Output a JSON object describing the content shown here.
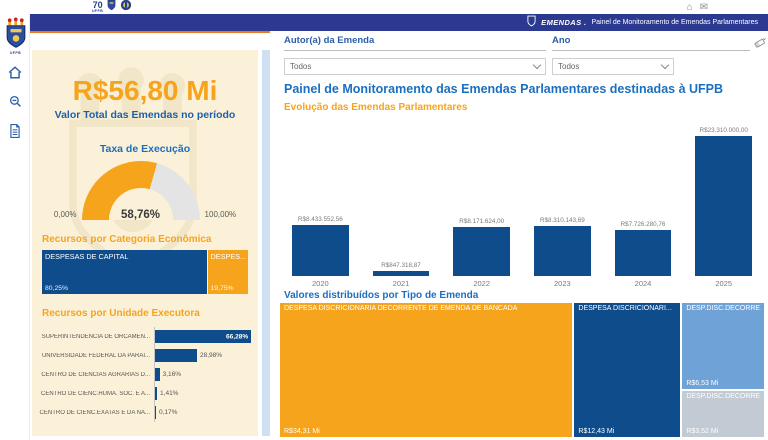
{
  "colors": {
    "navy": "#0F4C8C",
    "indigo": "#2B3990",
    "orange": "#F7A41D",
    "underline_orange": "#E87B1E",
    "cream": "#FBF1D8",
    "light_blue": "#6FA3D8",
    "gray_blue": "#C2CBD3",
    "gauge_rest": "#E4E4E4"
  },
  "topstrip": {
    "anniversary_number": "70",
    "anniversary_sub": "UFPB",
    "home_glyph": "⌂",
    "mail_glyph": "✉"
  },
  "appbar": {
    "brand": "EMENDAS .",
    "tagline": "Painel de Monitoramento de Emendas Parlamentares"
  },
  "sidebar": {
    "logo_text": "UFPB"
  },
  "filters": {
    "author_label": "Autor(a) da Emenda",
    "author_value": "Todos",
    "year_label": "Ano",
    "year_value": "Todos"
  },
  "kpi": {
    "total": "R$56,80 Mi",
    "caption": "Valor Total das Emendas no período"
  },
  "gauge": {
    "title": "Taxa de Execução",
    "value_label": "58,76%",
    "percent": 58.76,
    "min_label": "0,00%",
    "max_label": "100,00%"
  },
  "categoria": {
    "title": "Recursos por Categoria Econômica",
    "segments": [
      {
        "label": "DESPESAS DE CAPITAL",
        "pct_label": "80,25%",
        "pct": 80.25,
        "color": "#0F4C8C"
      },
      {
        "label": "DESPES...",
        "pct_label": "19,75%",
        "pct": 19.75,
        "color": "#F7A41D"
      }
    ]
  },
  "executora": {
    "title": "Recursos por Unidade Executora",
    "rows": [
      {
        "label": "SUPERINTENDENCIA DE ORCAMEN...",
        "pct_label": "66,28%",
        "pct": 66.28
      },
      {
        "label": "UNIVERSIDADE FEDERAL DA PARAI...",
        "pct_label": "28,98%",
        "pct": 28.98
      },
      {
        "label": "CENTRO DE CIENCIAS AGRARIAS D...",
        "pct_label": "3,16%",
        "pct": 3.16
      },
      {
        "label": "CENTRO DE CIENC.HUMA. SOC. E A...",
        "pct_label": "1,41%",
        "pct": 1.41
      },
      {
        "label": "CENTRO DE CIENC.EXATAS E DA NA...",
        "pct_label": "0,17%",
        "pct": 0.17
      }
    ]
  },
  "main": {
    "title": "Painel de Monitoramento das Emendas Parlamentares destinadas à UFPB",
    "evolution": {
      "title": "Evolução das Emendas Parlamentares",
      "max_value": 23310000,
      "items": [
        {
          "year": "2020",
          "label": "R$8.433.552,56",
          "value": 8433552.56
        },
        {
          "year": "2021",
          "label": "R$847.318,87",
          "value": 847318.87
        },
        {
          "year": "2022",
          "label": "R$8.171.624,00",
          "value": 8171624.0
        },
        {
          "year": "2023",
          "label": "R$8.310.143,69",
          "value": 8310143.69
        },
        {
          "year": "2024",
          "label": "R$7.726.280,76",
          "value": 7726280.76
        },
        {
          "year": "2025",
          "label": "R$23.310.000,00",
          "value": 23310000.0
        }
      ]
    },
    "treemap": {
      "title": "Valores distribuídos por Tipo de Emenda",
      "blocks": [
        {
          "label": "DESPESA DISCRICIONARIA DECORRENTE DE EMENDA DE BANCADA",
          "value_label": "R$34,31 Mi",
          "value": 34.31,
          "color": "#F7A41D",
          "slot": "left"
        },
        {
          "label": "DESPESA DISCRICIONARI...",
          "value_label": "R$12,43 Mi",
          "value": 12.43,
          "color": "#0F4C8C",
          "slot": "mid"
        },
        {
          "label": "DESP.DISC.DECORRE...",
          "value_label": "R$6,53 Mi",
          "value": 6.53,
          "color": "#6FA3D8",
          "slot": "right-top"
        },
        {
          "label": "DESP.DISC.DECORRE...",
          "value_label": "R$3,52 Mi",
          "value": 3.52,
          "color": "#C2CBD3",
          "slot": "right-bottom"
        }
      ]
    }
  },
  "chart_data": [
    {
      "type": "card",
      "title": "Valor Total das Emendas no período",
      "value": "R$56,80 Mi"
    },
    {
      "type": "gauge",
      "title": "Taxa de Execução",
      "value": 58.76,
      "min": 0,
      "max": 100,
      "unit": "%",
      "min_label": "0,00%",
      "max_label": "100,00%",
      "value_label": "58,76%"
    },
    {
      "type": "bar",
      "orientation": "horizontal-stacked",
      "title": "Recursos por Categoria Econômica",
      "categories": [
        "DESPESAS DE CAPITAL",
        "DESPES..."
      ],
      "values": [
        80.25,
        19.75
      ],
      "unit": "%"
    },
    {
      "type": "bar",
      "orientation": "horizontal",
      "title": "Recursos por Unidade Executora",
      "categories": [
        "SUPERINTENDENCIA DE ORCAMEN...",
        "UNIVERSIDADE FEDERAL DA PARAI...",
        "CENTRO DE CIENCIAS AGRARIAS D...",
        "CENTRO DE CIENC.HUMA. SOC. E A...",
        "CENTRO DE CIENC.EXATAS E DA NA..."
      ],
      "values": [
        66.28,
        28.98,
        3.16,
        1.41,
        0.17
      ],
      "unit": "%"
    },
    {
      "type": "bar",
      "title": "Evolução das Emendas Parlamentares",
      "categories": [
        "2020",
        "2021",
        "2022",
        "2023",
        "2024",
        "2025"
      ],
      "values": [
        8433552.56,
        847318.87,
        8171624.0,
        8310143.69,
        7726280.76,
        23310000.0
      ],
      "data_labels": [
        "R$8.433.552,56",
        "R$847.318,87",
        "R$8.171.624,00",
        "R$8.310.143,69",
        "R$7.726.280,76",
        "R$23.310.000,00"
      ],
      "xlabel": "",
      "ylabel": "R$",
      "ylim": [
        0,
        23310000
      ],
      "grid": false,
      "legend": false
    },
    {
      "type": "treemap",
      "title": "Valores distribuídos por Tipo de Emenda",
      "categories": [
        "DESPESA DISCRICIONARIA DECORRENTE DE EMENDA DE BANCADA",
        "DESPESA DISCRICIONARI...",
        "DESP.DISC.DECORRE...",
        "DESP.DISC.DECORRE..."
      ],
      "values": [
        34.31,
        12.43,
        6.53,
        3.52
      ],
      "unit": "R$ Mi",
      "data_labels": [
        "R$34,31 Mi",
        "R$12,43 Mi",
        "R$6,53 Mi",
        "R$3,52 Mi"
      ]
    }
  ]
}
